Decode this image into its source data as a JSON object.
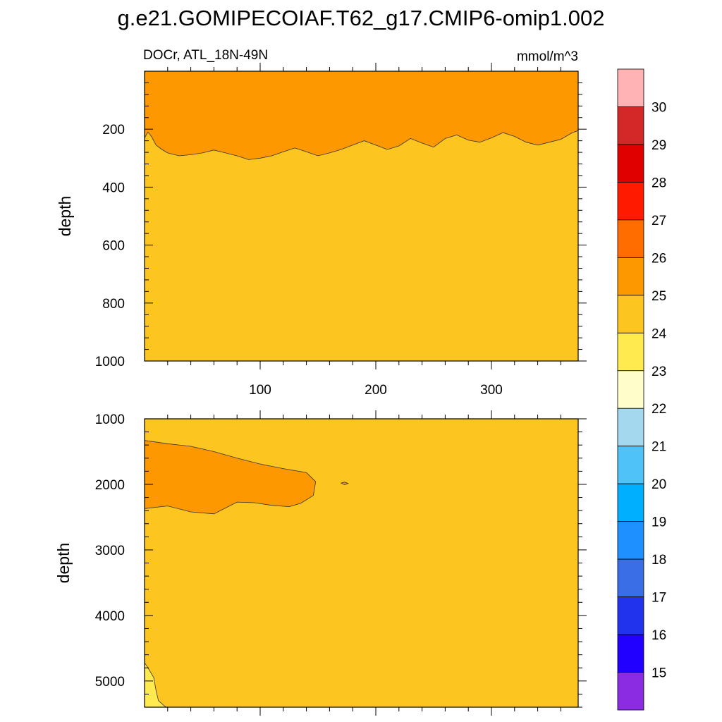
{
  "title": "g.e21.GOMIPECOIAF.T62_g17.CMIP6-omip1.002",
  "chart_data": {
    "type": "heatmap",
    "variable_label": "DOCr, ATL_18N-49N",
    "units": "mmol/m^3",
    "ylabel": "depth",
    "x_range": [
      0,
      375
    ],
    "x_ticks": [
      100,
      200,
      300
    ],
    "x_tick_labels": [
      "100",
      "200",
      "300"
    ],
    "colorbar": {
      "levels": [
        15,
        16,
        17,
        18,
        19,
        20,
        21,
        22,
        23,
        24,
        25,
        26,
        27,
        28,
        29,
        30
      ],
      "labels": [
        "15",
        "16",
        "17",
        "18",
        "19",
        "20",
        "21",
        "22",
        "23",
        "24",
        "25",
        "26",
        "27",
        "28",
        "29",
        "30"
      ],
      "colors": [
        "#8b2be2",
        "#2200ff",
        "#2233ee",
        "#3a6ee6",
        "#1e90ff",
        "#00b0ff",
        "#4fc3f7",
        "#a3d8ef",
        "#ffffcc",
        "#ffea4f",
        "#fcc51f",
        "#fd9800",
        "#ff6c00",
        "#ff1a00",
        "#e00000",
        "#d42828",
        "#ffb3b5"
      ]
    },
    "panels": [
      {
        "name": "upper",
        "ylim": [
          1000,
          0
        ],
        "y_ticks": [
          200,
          400,
          600,
          800,
          1000
        ],
        "y_tick_labels": [
          "200",
          "400",
          "600",
          "800",
          "1000"
        ],
        "background_range": "24-25",
        "regions": [
          {
            "name": "upper-layer-25-26",
            "range": "25-26",
            "description": "Surface layer above ~200-310 m depth across all x",
            "boundary_x": [
              0,
              3,
              6,
              10,
              15,
              20,
              30,
              40,
              50,
              60,
              70,
              80,
              90,
              100,
              110,
              120,
              130,
              140,
              150,
              160,
              170,
              180,
              190,
              200,
              210,
              220,
              230,
              240,
              250,
              260,
              270,
              280,
              290,
              300,
              310,
              320,
              330,
              340,
              350,
              360,
              370,
              375
            ],
            "boundary_depth": [
              230,
              210,
              225,
              255,
              270,
              282,
              292,
              288,
              282,
              272,
              282,
              292,
              305,
              300,
              292,
              278,
              265,
              278,
              292,
              282,
              270,
              255,
              240,
              255,
              270,
              258,
              232,
              248,
              262,
              232,
              220,
              238,
              245,
              230,
              212,
              225,
              245,
              255,
              245,
              235,
              212,
              205
            ]
          }
        ]
      },
      {
        "name": "lower",
        "ylim": [
          5400,
          1000
        ],
        "y_ticks": [
          1000,
          2000,
          3000,
          4000,
          5000
        ],
        "y_tick_labels": [
          "1000",
          "2000",
          "3000",
          "4000",
          "5000"
        ],
        "background_range": "24-25",
        "regions": [
          {
            "name": "nadw-tongue-25-26",
            "range": "25-26",
            "description": "Tongue of higher concentration from x=0 to ~148 between ~1330 and ~2460 m",
            "outline_x": [
              0,
              20,
              40,
              60,
              80,
              100,
              120,
              140,
              148,
              146,
              135,
              125,
              110,
              95,
              80,
              60,
              40,
              20,
              0
            ],
            "outline_depth": [
              1330,
              1380,
              1420,
              1500,
              1600,
              1690,
              1760,
              1820,
              1960,
              2170,
              2290,
              2340,
              2320,
              2280,
              2270,
              2450,
              2420,
              2330,
              2370
            ]
          },
          {
            "name": "small-patch-25-26",
            "range": "25-26",
            "outline_x": [
              170,
              173,
              176,
              173,
              170
            ],
            "outline_depth": [
              1980,
              1965,
              1985,
              2005,
              1980
            ]
          },
          {
            "name": "bottom-corner-23-24",
            "range": "23-24",
            "outline_x": [
              0,
              3,
              8,
              10,
              12,
              17,
              19,
              0
            ],
            "outline_depth": [
              4720,
              4800,
              4950,
              5150,
              5300,
              5380,
              5400,
              5400
            ]
          }
        ]
      }
    ]
  }
}
